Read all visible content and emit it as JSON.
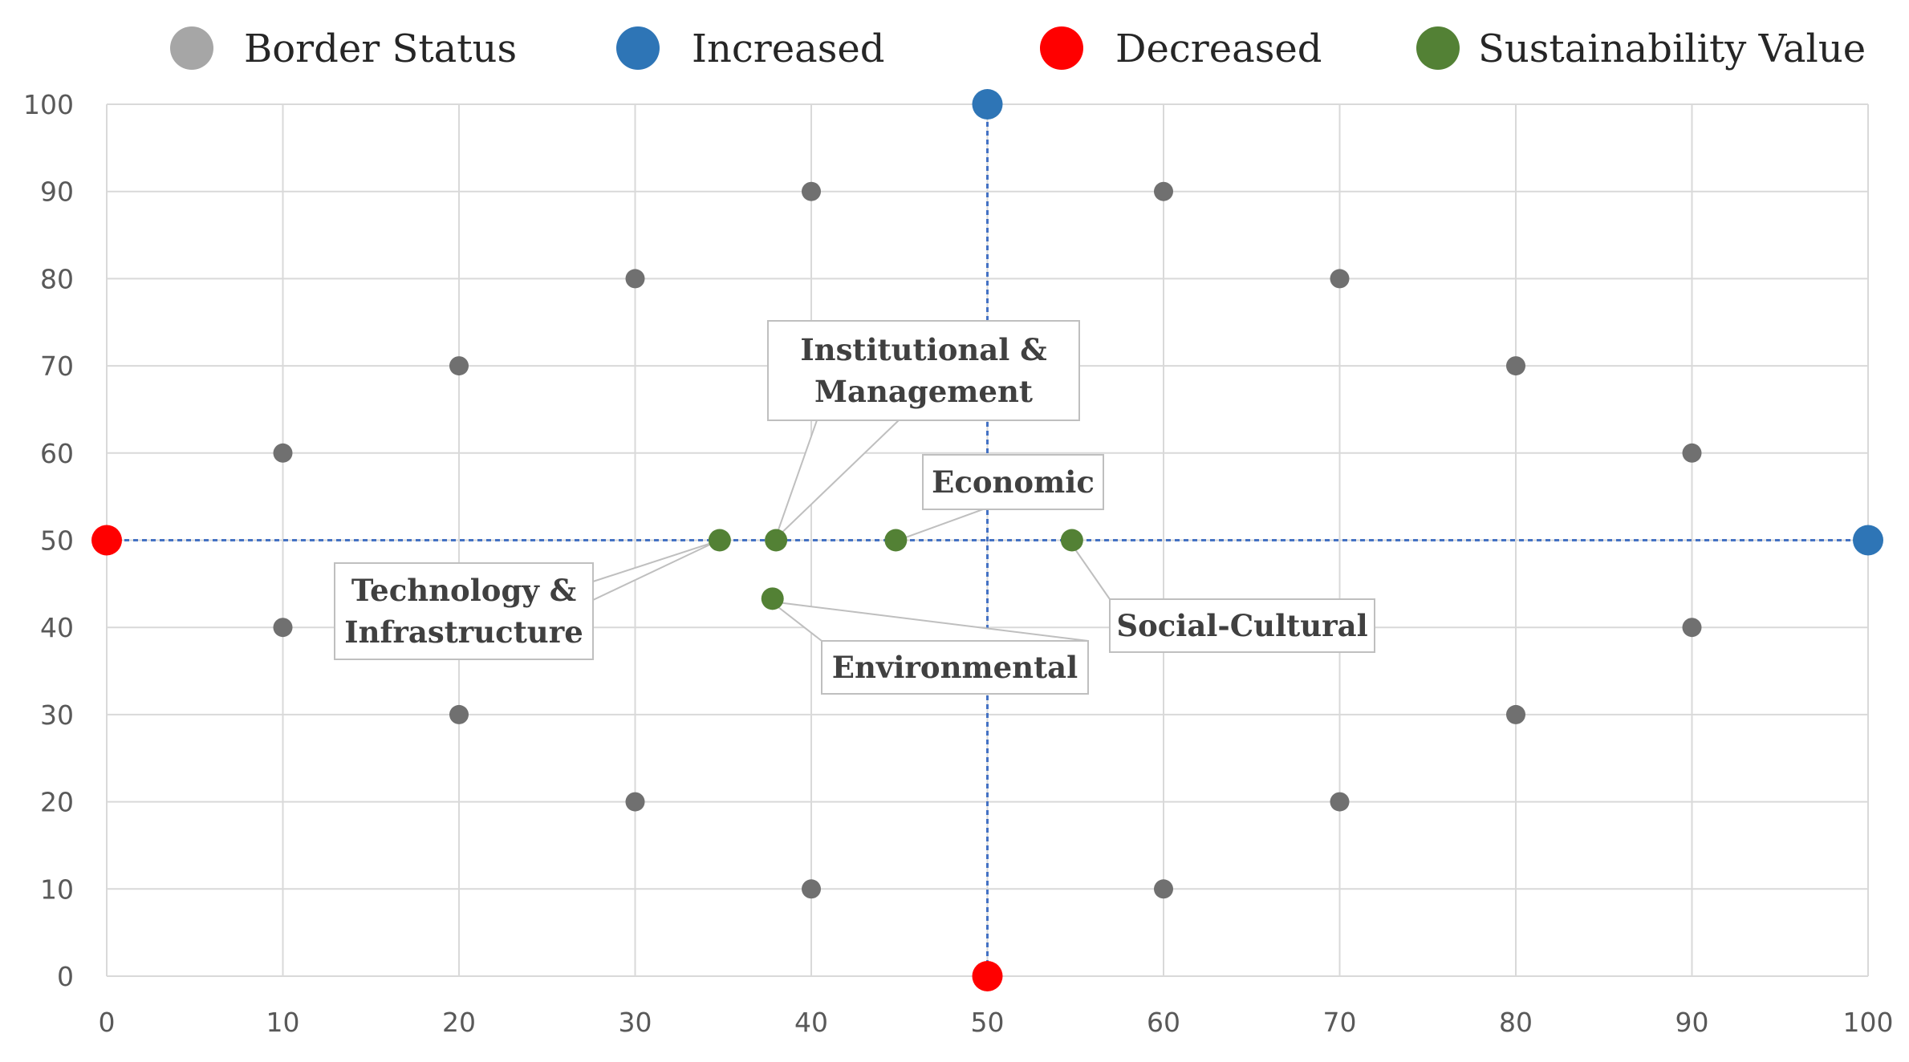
{
  "chart_data": {
    "type": "scatter",
    "title": "",
    "xlabel": "",
    "ylabel": "",
    "xlim": [
      0,
      100
    ],
    "ylim": [
      0,
      100
    ],
    "xticks": [
      0,
      10,
      20,
      30,
      40,
      50,
      60,
      70,
      80,
      90,
      100
    ],
    "yticks": [
      0,
      10,
      20,
      30,
      40,
      50,
      60,
      70,
      80,
      90,
      100
    ],
    "grid": true,
    "legend_position": "top",
    "legend": [
      {
        "name": "Border Status",
        "color": "#a6a6a6"
      },
      {
        "name": "Increased",
        "color": "#2e75b6"
      },
      {
        "name": "Decreased",
        "color": "#ff0000"
      },
      {
        "name": "Sustainability Value",
        "color": "#538135"
      }
    ],
    "series": [
      {
        "name": "Border Status",
        "color": "#707070",
        "points": [
          {
            "x": 10,
            "y": 60
          },
          {
            "x": 20,
            "y": 70
          },
          {
            "x": 30,
            "y": 80
          },
          {
            "x": 40,
            "y": 90
          },
          {
            "x": 60,
            "y": 90
          },
          {
            "x": 70,
            "y": 80
          },
          {
            "x": 80,
            "y": 70
          },
          {
            "x": 90,
            "y": 60
          },
          {
            "x": 10,
            "y": 40
          },
          {
            "x": 20,
            "y": 30
          },
          {
            "x": 30,
            "y": 20
          },
          {
            "x": 40,
            "y": 10
          },
          {
            "x": 60,
            "y": 10
          },
          {
            "x": 70,
            "y": 20
          },
          {
            "x": 80,
            "y": 30
          },
          {
            "x": 90,
            "y": 40
          }
        ]
      },
      {
        "name": "Increased",
        "color": "#2e75b6",
        "points": [
          {
            "x": 50,
            "y": 100
          },
          {
            "x": 100,
            "y": 50
          }
        ]
      },
      {
        "name": "Decreased",
        "color": "#ff0000",
        "points": [
          {
            "x": 0,
            "y": 50
          },
          {
            "x": 50,
            "y": 0
          }
        ]
      },
      {
        "name": "Sustainability Value",
        "color": "#538135",
        "points": [
          {
            "x": 34.8,
            "y": 50,
            "label": "Technology & Infrastructure"
          },
          {
            "x": 38,
            "y": 50,
            "label": "Institutional & Management"
          },
          {
            "x": 44.8,
            "y": 50,
            "label": "Economic"
          },
          {
            "x": 54.8,
            "y": 50,
            "label": "Social-Cultural"
          },
          {
            "x": 37.8,
            "y": 43.3,
            "label": "Environmental"
          }
        ]
      }
    ],
    "reference_lines": [
      {
        "orientation": "vertical",
        "x": 50,
        "color": "#4472c4",
        "style": "dotted"
      },
      {
        "orientation": "horizontal",
        "y": 50,
        "color": "#4472c4",
        "style": "dotted"
      }
    ],
    "annotations": [
      {
        "target": "Institutional & Management",
        "lines": [
          "Institutional &",
          "Management"
        ]
      },
      {
        "target": "Economic",
        "lines": [
          "Economic"
        ]
      },
      {
        "target": "Technology & Infrastructure",
        "lines": [
          "Technology &",
          "Infrastructure"
        ]
      },
      {
        "target": "Social-Cultural",
        "lines": [
          "Social-Cultural"
        ]
      },
      {
        "target": "Environmental",
        "lines": [
          "Environmental"
        ]
      }
    ]
  }
}
